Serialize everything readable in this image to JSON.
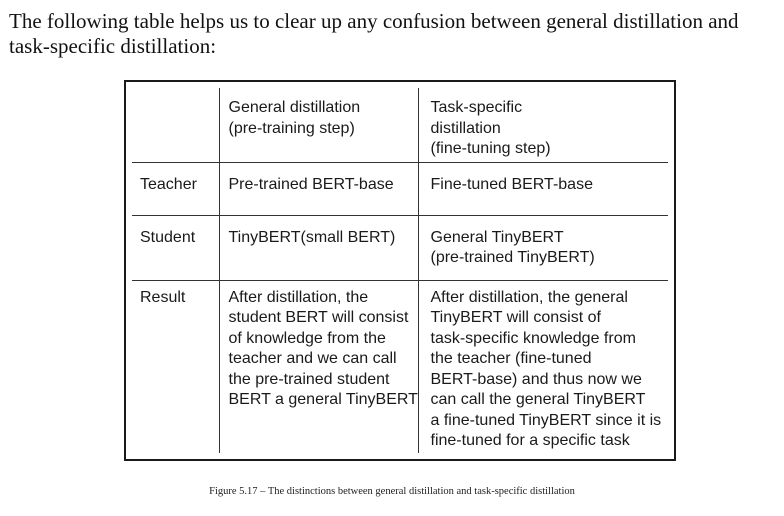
{
  "intro": {
    "line1": "The following table helps us to clear up any confusion between general distillation and",
    "line2": "task-specific distillation:"
  },
  "table": {
    "header": {
      "col1": "",
      "col2": [
        "General distillation",
        "(pre-training step)"
      ],
      "col3": [
        "Task-specific",
        "distillation",
        "(fine-tuning step)"
      ]
    },
    "rows": [
      {
        "label": "Teacher",
        "general": [
          "Pre-trained BERT-base"
        ],
        "task": [
          "Fine-tuned BERT-base"
        ]
      },
      {
        "label": "Student",
        "general": [
          "TinyBERT(small BERT)"
        ],
        "task": [
          "General TinyBERT",
          "(pre-trained TinyBERT)"
        ]
      },
      {
        "label": "Result",
        "general": [
          "After distillation, the",
          "student BERT will consist",
          "of knowledge from the",
          "teacher and we can call",
          "the pre-trained student",
          "BERT a general TinyBERT"
        ],
        "task": [
          "After distillation, the general",
          "TinyBERT will consist of",
          "task-specific knowledge from",
          "the teacher (fine-tuned",
          "BERT-base) and thus now we",
          "can call the general TinyBERT",
          "a fine-tuned TinyBERT since it is",
          "fine-tuned for a specific task"
        ]
      }
    ]
  },
  "caption": "Figure 5.17 – The distinctions between general distillation and task-specific distillation"
}
